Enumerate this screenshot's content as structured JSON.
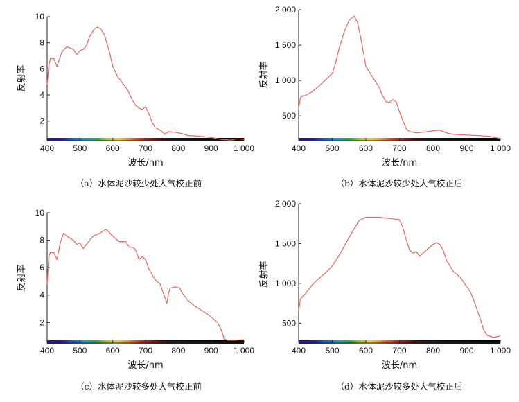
{
  "chart_data": [
    {
      "type": "line",
      "caption": "（a）水体泥沙较少处大气校正前",
      "xlabel": "波长/nm",
      "ylabel": "反射率",
      "xlim": [
        400,
        1000
      ],
      "ylim": [
        0.5,
        10
      ],
      "xticks": [
        400,
        500,
        600,
        700,
        800,
        900,
        1000
      ],
      "xtick_labels": [
        "400",
        "500",
        "600",
        "700",
        "800",
        "900",
        "1 000"
      ],
      "yticks": [
        2,
        4,
        6,
        8,
        10
      ],
      "ytick_labels": [
        "2",
        "4",
        "6",
        "8",
        "10"
      ],
      "line_color": "#e8645c",
      "x": [
        400,
        405,
        410,
        420,
        430,
        445,
        460,
        480,
        490,
        500,
        510,
        520,
        530,
        545,
        555,
        565,
        575,
        590,
        600,
        615,
        630,
        645,
        660,
        670,
        680,
        690,
        700,
        710,
        720,
        730,
        745,
        760,
        770,
        790,
        810,
        830,
        860,
        900,
        930,
        960,
        980,
        1000
      ],
      "y": [
        4.8,
        6.2,
        6.8,
        6.8,
        6.2,
        7.3,
        7.7,
        7.5,
        7.1,
        7.4,
        7.5,
        7.8,
        8.5,
        9.1,
        9.2,
        9.0,
        8.6,
        7.3,
        6.2,
        5.4,
        4.9,
        4.4,
        3.6,
        3.2,
        3.0,
        2.9,
        3.1,
        2.6,
        1.9,
        1.5,
        1.3,
        1.0,
        1.2,
        1.15,
        1.05,
        0.9,
        0.85,
        0.75,
        0.6,
        0.55,
        0.65,
        0.6
      ]
    },
    {
      "type": "line",
      "caption": "（b）水体泥沙较少处大气校正后",
      "xlabel": "波长/nm",
      "ylabel": "反射率",
      "xlim": [
        400,
        1000
      ],
      "ylim": [
        150,
        2000
      ],
      "xticks": [
        400,
        500,
        600,
        700,
        800,
        900,
        1000
      ],
      "xtick_labels": [
        "400",
        "500",
        "600",
        "700",
        "800",
        "900",
        "1 000"
      ],
      "yticks": [
        500,
        1000,
        1500,
        2000
      ],
      "ytick_labels": [
        "500",
        "1 000",
        "1 500",
        "2 000"
      ],
      "line_color": "#e8645c",
      "x": [
        400,
        405,
        410,
        420,
        440,
        460,
        480,
        500,
        510,
        520,
        535,
        550,
        565,
        575,
        585,
        600,
        620,
        640,
        650,
        660,
        670,
        680,
        690,
        700,
        710,
        720,
        730,
        750,
        770,
        800,
        820,
        840,
        860,
        900,
        940,
        970,
        1000
      ],
      "y": [
        600,
        750,
        780,
        790,
        840,
        920,
        1010,
        1100,
        1250,
        1450,
        1680,
        1850,
        1910,
        1820,
        1600,
        1200,
        1050,
        900,
        780,
        700,
        690,
        730,
        700,
        560,
        430,
        320,
        280,
        260,
        270,
        290,
        300,
        260,
        240,
        230,
        220,
        210,
        180
      ]
    },
    {
      "type": "line",
      "caption": "（c）水体泥沙较多处大气校正前",
      "xlabel": "波长/nm",
      "ylabel": "反射率",
      "xlim": [
        400,
        1000
      ],
      "ylim": [
        0.5,
        10
      ],
      "xticks": [
        400,
        500,
        600,
        700,
        800,
        900,
        1000
      ],
      "xtick_labels": [
        "400",
        "500",
        "600",
        "700",
        "800",
        "900",
        "1 000"
      ],
      "yticks": [
        2,
        4,
        6,
        8,
        10
      ],
      "ytick_labels": [
        "2",
        "4",
        "6",
        "8",
        "10"
      ],
      "line_color": "#e8645c",
      "x": [
        400,
        405,
        410,
        420,
        430,
        440,
        450,
        460,
        480,
        490,
        500,
        510,
        520,
        530,
        540,
        560,
        580,
        600,
        620,
        640,
        650,
        660,
        670,
        680,
        690,
        700,
        710,
        720,
        730,
        745,
        755,
        765,
        770,
        775,
        790,
        800,
        805,
        810,
        830,
        850,
        870,
        890,
        910,
        920,
        930,
        940,
        950,
        970,
        1000
      ],
      "y": [
        4.8,
        6.8,
        7.1,
        7.1,
        6.6,
        7.8,
        8.5,
        8.3,
        8.0,
        7.7,
        7.8,
        7.4,
        7.7,
        8.0,
        8.3,
        8.5,
        8.8,
        8.3,
        7.9,
        7.9,
        7.5,
        7.5,
        7.3,
        6.6,
        6.8,
        6.6,
        5.9,
        5.5,
        5.1,
        4.8,
        4.1,
        3.4,
        4.1,
        4.5,
        4.6,
        4.55,
        4.5,
        4.2,
        3.6,
        3.2,
        2.9,
        2.6,
        2.2,
        2.0,
        1.5,
        0.8,
        0.7,
        0.7,
        0.75
      ]
    },
    {
      "type": "line",
      "caption": "（d）水体泥沙较多处大气校正后",
      "xlabel": "波长/nm",
      "ylabel": "反射率",
      "xlim": [
        400,
        1000
      ],
      "ylim": [
        250,
        2000
      ],
      "xticks": [
        400,
        500,
        600,
        700,
        800,
        900,
        1000
      ],
      "xtick_labels": [
        "400",
        "500",
        "600",
        "700",
        "800",
        "900",
        "1 000"
      ],
      "yticks": [
        500,
        1000,
        1500,
        2000
      ],
      "ytick_labels": [
        "500",
        "1 000",
        "1 500",
        "2 000"
      ],
      "line_color": "#e8645c",
      "x": [
        400,
        405,
        410,
        420,
        440,
        460,
        480,
        500,
        520,
        540,
        560,
        580,
        600,
        640,
        680,
        700,
        710,
        720,
        730,
        740,
        750,
        760,
        770,
        780,
        800,
        810,
        820,
        830,
        840,
        860,
        880,
        900,
        910,
        920,
        930,
        940,
        950,
        960,
        980,
        1000
      ],
      "y": [
        650,
        800,
        830,
        870,
        980,
        1060,
        1130,
        1220,
        1350,
        1500,
        1650,
        1790,
        1830,
        1830,
        1810,
        1800,
        1700,
        1550,
        1420,
        1380,
        1400,
        1340,
        1380,
        1420,
        1490,
        1510,
        1490,
        1420,
        1290,
        1150,
        1080,
        960,
        900,
        800,
        680,
        560,
        420,
        350,
        320,
        340
      ]
    }
  ]
}
